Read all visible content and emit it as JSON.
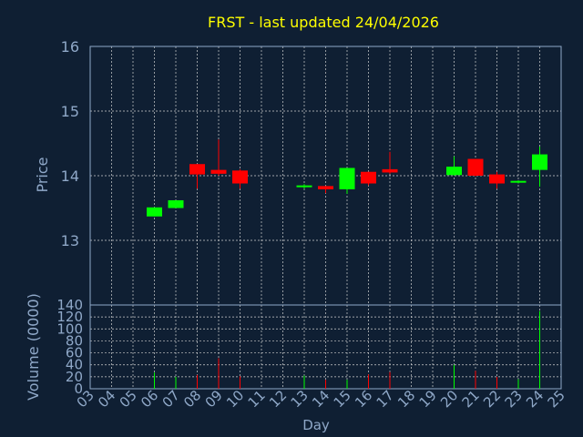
{
  "chart_data": [
    {
      "type": "candlestick",
      "title": "FRST - last updated 24/04/2026",
      "ylabel": "Price",
      "xlabel": "",
      "ylim": [
        12.0,
        16.0
      ],
      "yticks": [
        13,
        14,
        15,
        16
      ],
      "grid": true,
      "candles": [
        {
          "day": "06",
          "open": 13.37,
          "high": 13.51,
          "low": 13.37,
          "close": 13.51
        },
        {
          "day": "07",
          "open": 13.5,
          "high": 13.62,
          "low": 13.5,
          "close": 13.62
        },
        {
          "day": "08",
          "open": 14.18,
          "high": 14.18,
          "low": 13.8,
          "close": 14.02
        },
        {
          "day": "09",
          "open": 14.09,
          "high": 14.56,
          "low": 14.0,
          "close": 14.03
        },
        {
          "day": "10",
          "open": 14.08,
          "high": 14.1,
          "low": 13.8,
          "close": 13.88
        },
        {
          "day": "13",
          "open": 13.83,
          "high": 13.87,
          "low": 13.8,
          "close": 13.85
        },
        {
          "day": "14",
          "open": 13.84,
          "high": 13.84,
          "low": 13.73,
          "close": 13.79
        },
        {
          "day": "15",
          "open": 13.79,
          "high": 14.12,
          "low": 13.72,
          "close": 14.12
        },
        {
          "day": "16",
          "open": 14.06,
          "high": 14.06,
          "low": 13.85,
          "close": 13.88
        },
        {
          "day": "17",
          "open": 14.1,
          "high": 14.37,
          "low": 14.03,
          "close": 14.05
        },
        {
          "day": "20",
          "open": 14.01,
          "high": 14.3,
          "low": 14.0,
          "close": 14.14
        },
        {
          "day": "21",
          "open": 14.26,
          "high": 14.26,
          "low": 13.99,
          "close": 14.0
        },
        {
          "day": "22",
          "open": 14.02,
          "high": 14.06,
          "low": 13.8,
          "close": 13.88
        },
        {
          "day": "23",
          "open": 13.9,
          "high": 13.93,
          "low": 13.88,
          "close": 13.92
        },
        {
          "day": "24",
          "open": 14.09,
          "high": 14.45,
          "low": 13.83,
          "close": 14.33
        }
      ],
      "colors": {
        "up": "#00ff00",
        "down": "#ff0000",
        "title": "#ffff00",
        "axis_text": "#8fa8c8",
        "grid": "#d0d0d0",
        "frame": "#8fa8c8"
      }
    },
    {
      "type": "bar",
      "ylabel": "Volume (0000)",
      "xlabel": "Day",
      "ylim": [
        0,
        140
      ],
      "yticks": [
        0,
        20,
        40,
        60,
        80,
        100,
        120,
        140
      ],
      "grid": true,
      "categories": [
        "03",
        "04",
        "05",
        "06",
        "07",
        "08",
        "09",
        "10",
        "11",
        "12",
        "13",
        "14",
        "15",
        "16",
        "17",
        "18",
        "19",
        "20",
        "21",
        "22",
        "23",
        "24",
        "25"
      ],
      "values": [
        0,
        0,
        0,
        27,
        20,
        23,
        51,
        21,
        0,
        0,
        22,
        15,
        15,
        24,
        28,
        0,
        0,
        40,
        30,
        20,
        16,
        130,
        0
      ],
      "up_days": [
        "06",
        "07",
        "13",
        "15",
        "20",
        "23",
        "24"
      ]
    }
  ]
}
